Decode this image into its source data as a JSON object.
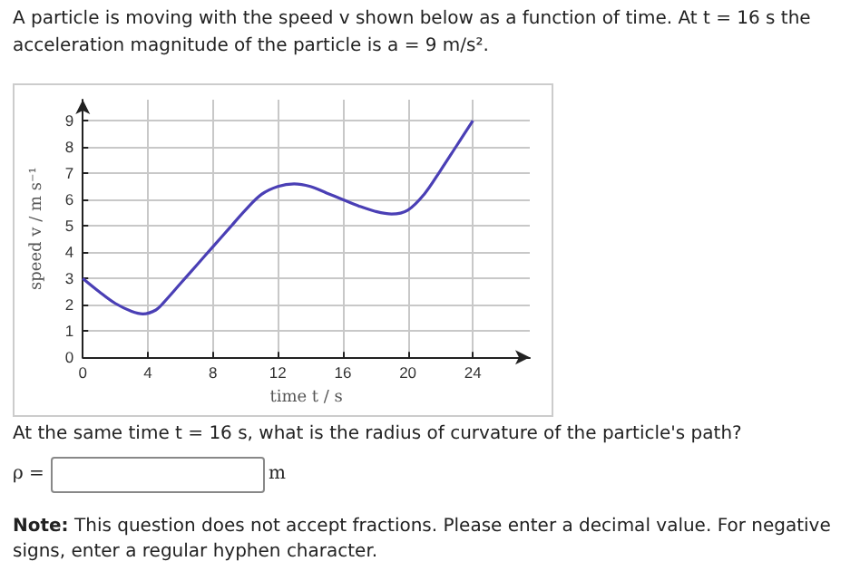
{
  "chart_data": {
    "type": "line",
    "title": "A particle is moving with the speed v shown below as a function of time. At t = 16 s the acceleration magnitude of the particle is a = 9 m/s².",
    "xlabel": "time t / s",
    "ylabel": "speed v / m s⁻¹",
    "annotations": [
      "At the same time t = 16 s, what is the radius of curvature of the particle's path?",
      "ρ =",
      "m",
      "Note: This question does not accept fractions. Please enter a decimal value. For negative signs, enter a regular hyphen character."
    ],
    "x": [
      0,
      1,
      2,
      3,
      3.7,
      4.5,
      5,
      6,
      7,
      8,
      9,
      10,
      11,
      12,
      13,
      14,
      15,
      16,
      17,
      18,
      19,
      20,
      21,
      22,
      23,
      24
    ],
    "series": [
      {
        "color": "#4a3fb5",
        "values": [
          3,
          2.5,
          2.05,
          1.75,
          1.65,
          1.8,
          2.1,
          2.8,
          3.5,
          4.2,
          4.9,
          5.6,
          6.2,
          6.5,
          6.6,
          6.5,
          6.25,
          6,
          5.75,
          5.55,
          5.45,
          5.6,
          6.2,
          7.1,
          8.05,
          9
        ]
      }
    ],
    "xlim": [
      0,
      27.5
    ],
    "xticks": [
      0,
      4,
      8,
      12,
      16,
      20,
      24
    ],
    "ylim": [
      0,
      9.8
    ],
    "yticks": [
      0,
      1,
      2,
      3,
      4,
      5,
      6,
      7,
      8,
      9
    ],
    "grid": true,
    "marker": "none",
    "line_style": "solid"
  }
}
